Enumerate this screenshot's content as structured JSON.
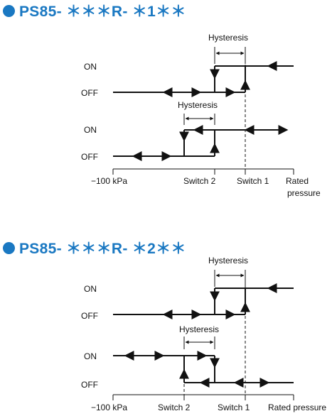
{
  "diagram1": {
    "heading": "PS85- ＊＊＊R- ＊1＊＊",
    "hysteresis_top": "Hysteresis",
    "hysteresis_bottom": "Hysteresis",
    "on_top": "ON",
    "off_top": "OFF",
    "on_bottom": "ON",
    "off_bottom": "OFF",
    "axis_min": "−100 kPa",
    "switch2": "Switch 2",
    "switch1": "Switch 1",
    "rated_line1": "Rated",
    "rated_line2": "pressure"
  },
  "diagram2": {
    "heading": "PS85- ＊＊＊R- ＊2＊＊",
    "hysteresis_top": "Hysteresis",
    "hysteresis_bottom": "Hysteresis",
    "on_top": "ON",
    "off_top": "OFF",
    "on_bottom": "ON",
    "off_bottom": "OFF",
    "axis_min": "−100 kPa",
    "switch2": "Switch 2",
    "switch1": "Switch 1",
    "rated": "Rated pressure"
  }
}
